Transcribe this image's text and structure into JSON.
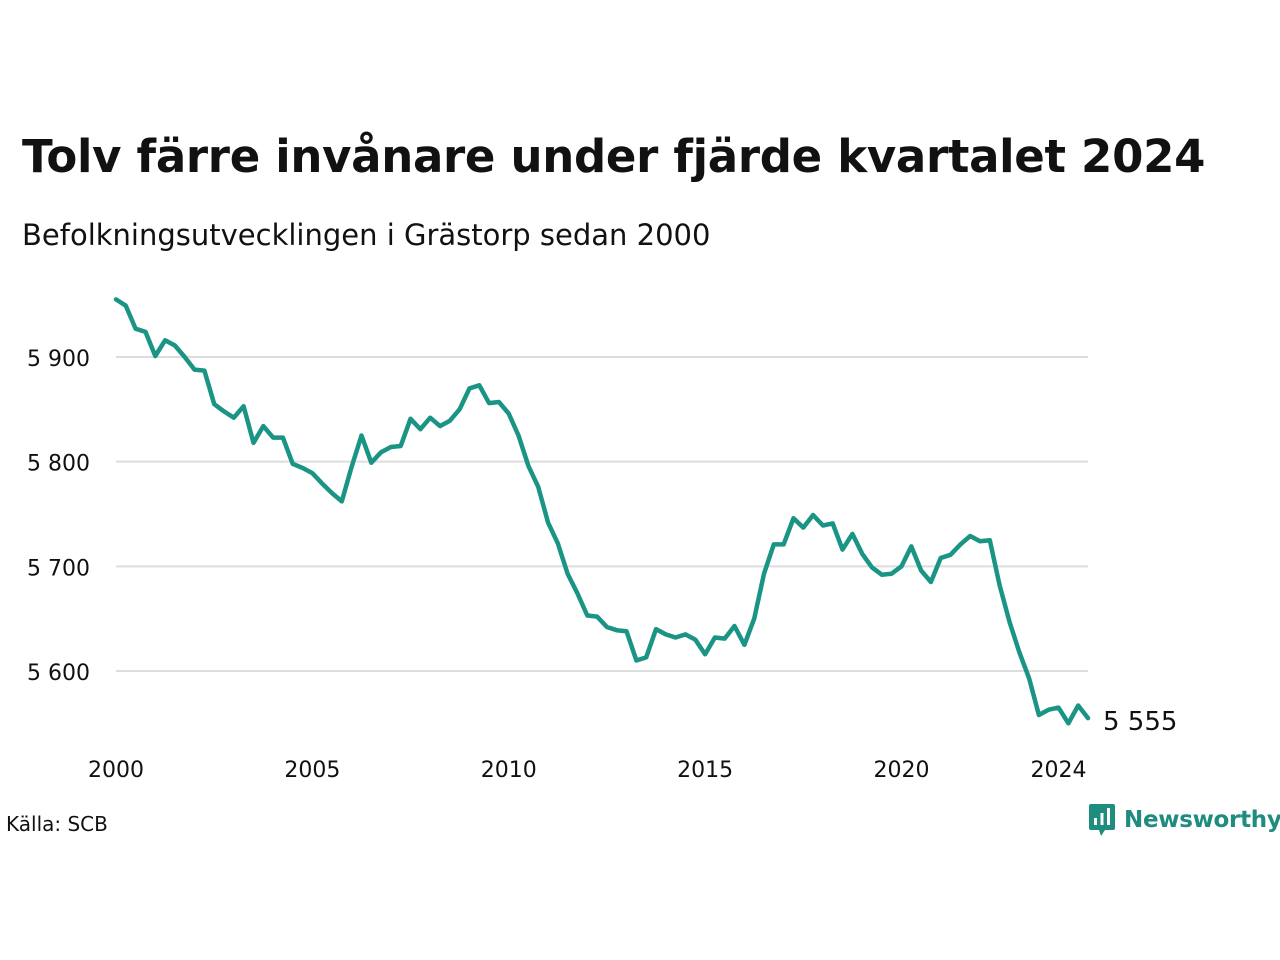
{
  "title": "Tolv färre invånare under fjärde kvartalet 2024",
  "subtitle": "Befolkningsutvecklingen i Grästorp sedan 2000",
  "source": "Källa: SCB",
  "brand": "Newsworthy",
  "colors": {
    "line": "#1a9485",
    "grid": "#dddddd",
    "brand": "#1e8c7e"
  },
  "chart_data": {
    "type": "line",
    "title": "Tolv färre invånare under fjärde kvartalet 2024",
    "subtitle": "Befolkningsutvecklingen i Grästorp sedan 2000",
    "xlabel": "",
    "ylabel": "",
    "xlim": [
      2000,
      2025
    ],
    "ylim": [
      5540,
      5960
    ],
    "x_ticks": [
      2000,
      2005,
      2010,
      2015,
      2020,
      2024
    ],
    "x_tick_labels": [
      "2000",
      "2005",
      "2010",
      "2015",
      "2020",
      "2024"
    ],
    "y_ticks": [
      5600,
      5700,
      5800,
      5900
    ],
    "y_tick_labels": [
      "5 600",
      "5 700",
      "5 800",
      "5 900"
    ],
    "grid": "horizontal",
    "legend": "none",
    "end_label": "5 555",
    "series": [
      {
        "x": [
          "2000Q1",
          "2000Q2",
          "2000Q3",
          "2000Q4",
          "2001Q1",
          "2001Q2",
          "2001Q3",
          "2001Q4",
          "2002Q1",
          "2002Q2",
          "2002Q3",
          "2002Q4",
          "2003Q1",
          "2003Q2",
          "2003Q3",
          "2003Q4",
          "2004Q1",
          "2004Q2",
          "2004Q3",
          "2004Q4",
          "2005Q1",
          "2005Q2",
          "2005Q3",
          "2005Q4",
          "2006Q1",
          "2006Q2",
          "2006Q3",
          "2006Q4",
          "2007Q1",
          "2007Q2",
          "2007Q3",
          "2007Q4",
          "2008Q1",
          "2008Q2",
          "2008Q3",
          "2008Q4",
          "2009Q1",
          "2009Q2",
          "2009Q3",
          "2009Q4",
          "2010Q1",
          "2010Q2",
          "2010Q3",
          "2010Q4",
          "2011Q1",
          "2011Q2",
          "2011Q3",
          "2011Q4",
          "2012Q1",
          "2012Q2",
          "2012Q3",
          "2012Q4",
          "2013Q1",
          "2013Q2",
          "2013Q3",
          "2013Q4",
          "2014Q1",
          "2014Q2",
          "2014Q3",
          "2014Q4",
          "2015Q1",
          "2015Q2",
          "2015Q3",
          "2015Q4",
          "2016Q1",
          "2016Q2",
          "2016Q3",
          "2016Q4",
          "2017Q1",
          "2017Q2",
          "2017Q3",
          "2017Q4",
          "2018Q1",
          "2018Q2",
          "2018Q3",
          "2018Q4",
          "2019Q1",
          "2019Q2",
          "2019Q3",
          "2019Q4",
          "2020Q1",
          "2020Q2",
          "2020Q3",
          "2020Q4",
          "2021Q1",
          "2021Q2",
          "2021Q3",
          "2021Q4",
          "2022Q1",
          "2022Q2",
          "2022Q3",
          "2022Q4",
          "2023Q1",
          "2023Q2",
          "2023Q3",
          "2023Q4",
          "2024Q1",
          "2024Q2",
          "2024Q3",
          "2024Q4"
        ],
        "values": [
          5955,
          5949,
          5927,
          5924,
          5901,
          5916,
          5911,
          5900,
          5888,
          5887,
          5855,
          5848,
          5842,
          5853,
          5818,
          5834,
          5823,
          5823,
          5798,
          5794,
          5789,
          5779,
          5770,
          5762,
          5795,
          5825,
          5799,
          5809,
          5814,
          5815,
          5841,
          5831,
          5842,
          5834,
          5839,
          5850,
          5870,
          5873,
          5856,
          5857,
          5846,
          5825,
          5796,
          5776,
          5742,
          5722,
          5693,
          5674,
          5653,
          5652,
          5642,
          5639,
          5638,
          5610,
          5613,
          5640,
          5635,
          5632,
          5635,
          5630,
          5616,
          5632,
          5631,
          5643,
          5625,
          5650,
          5693,
          5721,
          5721,
          5746,
          5737,
          5749,
          5739,
          5741,
          5716,
          5731,
          5712,
          5699,
          5692,
          5693,
          5700,
          5719,
          5696,
          5685,
          5708,
          5711,
          5721,
          5729,
          5724,
          5725,
          5682,
          5647,
          5618,
          5593,
          5558,
          5563,
          5565,
          5550,
          5567,
          5555
        ]
      }
    ]
  }
}
